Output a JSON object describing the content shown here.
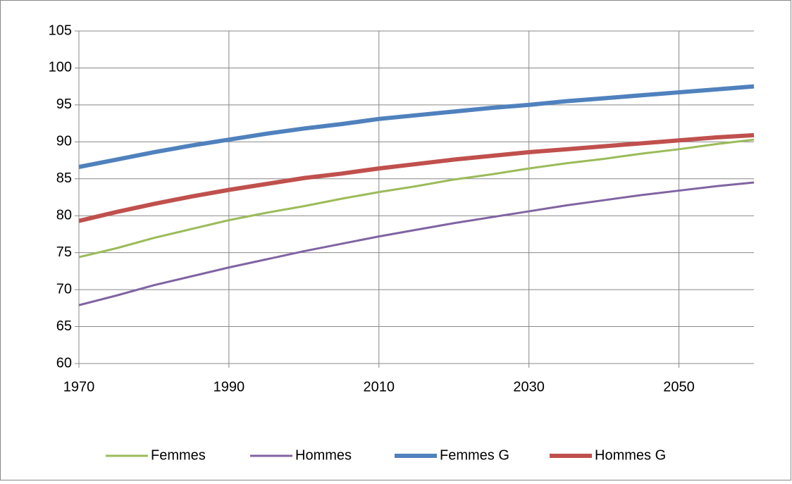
{
  "chart_data": {
    "type": "line",
    "x": [
      1970,
      1975,
      1980,
      1985,
      1990,
      1995,
      2000,
      2005,
      2010,
      2015,
      2020,
      2025,
      2030,
      2035,
      2040,
      2045,
      2050,
      2055,
      2060
    ],
    "series": [
      {
        "name": "Femmes",
        "color": "#9bbb59",
        "values": [
          74.4,
          75.6,
          77.0,
          78.2,
          79.4,
          80.4,
          81.3,
          82.3,
          83.2,
          84.0,
          84.9,
          85.6,
          86.4,
          87.1,
          87.7,
          88.4,
          89.0,
          89.7,
          90.3
        ]
      },
      {
        "name": "Hommes",
        "color": "#8064a2",
        "values": [
          67.9,
          69.2,
          70.6,
          71.8,
          73.0,
          74.1,
          75.2,
          76.2,
          77.2,
          78.1,
          79.0,
          79.8,
          80.6,
          81.4,
          82.1,
          82.8,
          83.4,
          84.0,
          84.5
        ]
      },
      {
        "name": "Femmes G",
        "color": "#4f81bd",
        "values": [
          86.6,
          87.6,
          88.6,
          89.5,
          90.3,
          91.1,
          91.8,
          92.4,
          93.1,
          93.6,
          94.1,
          94.6,
          95.0,
          95.5,
          95.9,
          96.3,
          96.7,
          97.1,
          97.5
        ]
      },
      {
        "name": "Hommes G",
        "color": "#c0504d",
        "values": [
          79.3,
          80.5,
          81.6,
          82.6,
          83.5,
          84.3,
          85.1,
          85.7,
          86.4,
          87.0,
          87.6,
          88.1,
          88.6,
          89.0,
          89.4,
          89.8,
          90.2,
          90.6,
          90.9
        ]
      }
    ],
    "xlim": [
      1970,
      2060
    ],
    "xticks": [
      1970,
      1990,
      2010,
      2030,
      2050
    ],
    "ylim": [
      60,
      105
    ],
    "yticks": [
      60,
      65,
      70,
      75,
      80,
      85,
      90,
      95,
      100,
      105
    ],
    "grid": true,
    "legend": "bottom"
  }
}
